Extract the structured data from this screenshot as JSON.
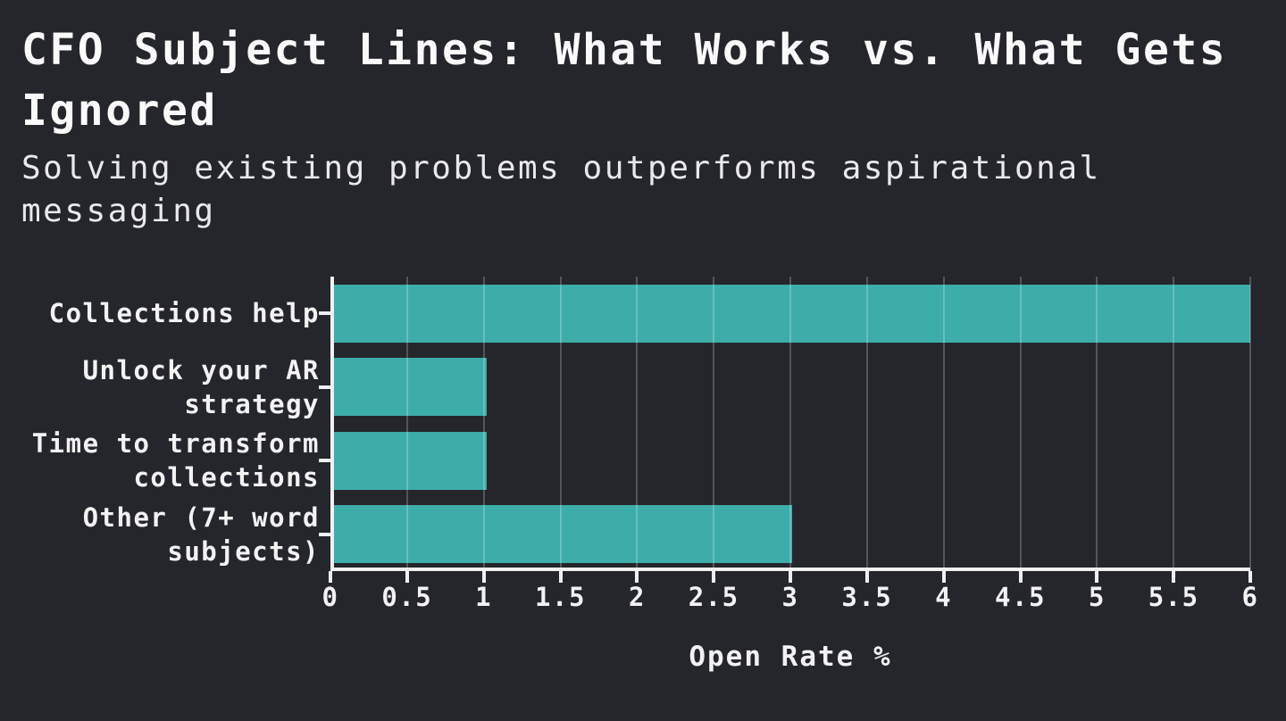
{
  "chart_data": {
    "type": "bar",
    "orientation": "horizontal",
    "title": "CFO Subject Lines: What Works vs. What Gets Ignored",
    "subtitle": "Solving existing problems outperforms aspirational messaging",
    "categories": [
      "Collections help",
      "Unlock your AR strategy",
      "Time to transform collections",
      "Other (7+ word subjects)"
    ],
    "label_lines": [
      [
        "Collections help"
      ],
      [
        "Unlock your AR",
        "strategy"
      ],
      [
        "Time to transform",
        "collections"
      ],
      [
        "Other (7+ word",
        "subjects)"
      ]
    ],
    "values": [
      6,
      1,
      1,
      3
    ],
    "xlabel": "Open Rate %",
    "ylabel": "",
    "xlim": [
      0,
      6
    ],
    "x_ticks": [
      0,
      0.5,
      1,
      1.5,
      2,
      2.5,
      3,
      3.5,
      4,
      4.5,
      5,
      5.5,
      6
    ],
    "x_tick_labels": [
      "0",
      "0.5",
      "1",
      "1.5",
      "2",
      "2.5",
      "3",
      "3.5",
      "4",
      "4.5",
      "5",
      "5.5",
      "6"
    ],
    "grid": true,
    "legend": false,
    "colors": {
      "background": "#24262c",
      "bar": "#3dada9",
      "axis": "#f0f0f2",
      "grid": "rgba(255,255,255,0.22)",
      "title_text": "#fafafa",
      "subtitle_text": "#e9e9eb",
      "label_text": "#f2f2f3"
    }
  }
}
